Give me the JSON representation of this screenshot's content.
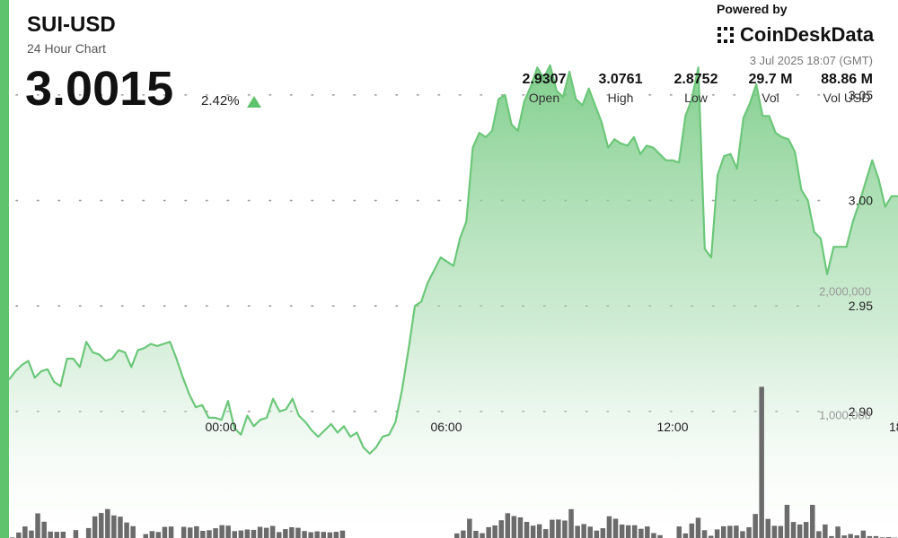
{
  "header": {
    "symbol": "SUI-USD",
    "subtitle": "24 Hour Chart",
    "price": "3.0015",
    "change": "2.42%",
    "powered_by": "Powered by",
    "brand": "CoinDeskData",
    "date": "3 Jul 2025 18:07 (GMT)"
  },
  "stats": [
    {
      "value": "2.9307",
      "label": "Open"
    },
    {
      "value": "3.0761",
      "label": "High"
    },
    {
      "value": "2.8752",
      "label": "Low"
    },
    {
      "value": "29.7 M",
      "label": "Vol"
    },
    {
      "value": "88.86 M",
      "label": "Vol USD"
    }
  ],
  "colors": {
    "accent": "#5fc36d",
    "line": "#6cc77a",
    "volume_bar": "#6b6b6b"
  },
  "chart_data": {
    "type": "area",
    "title": "SUI-USD",
    "x_ticks": [
      "00:00",
      "06:00",
      "12:00",
      "18:"
    ],
    "y_ticks": [
      3.05,
      3.0,
      2.95,
      2.9
    ],
    "y_tick_labels": [
      "3.05",
      "3.00",
      "2.95",
      "2.90"
    ],
    "ylim": [
      2.84,
      3.095
    ],
    "grid": true,
    "price_series": [
      2.915,
      2.919,
      2.922,
      2.924,
      2.916,
      2.919,
      2.92,
      2.914,
      2.912,
      2.925,
      2.925,
      2.921,
      2.933,
      2.928,
      2.927,
      2.924,
      2.925,
      2.929,
      2.928,
      2.921,
      2.929,
      2.93,
      2.932,
      2.931,
      2.932,
      2.933,
      2.925,
      2.916,
      2.908,
      2.902,
      2.903,
      2.897,
      2.897,
      2.896,
      2.905,
      2.892,
      2.889,
      2.898,
      2.893,
      2.896,
      2.897,
      2.906,
      2.9,
      2.901,
      2.906,
      2.898,
      2.895,
      2.891,
      2.888,
      2.891,
      2.894,
      2.89,
      2.893,
      2.888,
      2.89,
      2.883,
      2.88,
      2.883,
      2.888,
      2.889,
      2.895,
      2.91,
      2.929,
      2.95,
      2.952,
      2.961,
      2.967,
      2.973,
      2.971,
      2.969,
      2.982,
      2.99,
      3.025,
      3.032,
      3.03,
      3.033,
      3.048,
      3.05,
      3.036,
      3.033,
      3.047,
      3.054,
      3.063,
      3.058,
      3.064,
      3.052,
      3.049,
      3.061,
      3.048,
      3.045,
      3.053,
      3.045,
      3.037,
      3.025,
      3.029,
      3.027,
      3.026,
      3.03,
      3.022,
      3.026,
      3.025,
      3.022,
      3.019,
      3.019,
      3.018,
      3.04,
      3.048,
      3.063,
      2.977,
      2.973,
      3.012,
      3.021,
      3.022,
      3.015,
      3.039,
      3.046,
      3.055,
      3.04,
      3.04,
      3.032,
      3.03,
      3.029,
      3.023,
      3.005,
      3.0,
      2.985,
      2.982,
      2.965,
      2.978,
      2.978,
      2.978,
      2.99,
      2.999,
      3.009,
      3.019,
      3.01,
      2.997,
      3.002,
      3.002
    ],
    "volume_series": [
      4,
      44,
      94,
      60,
      200,
      132,
      52,
      50,
      51,
      0,
      64,
      0,
      81,
      175,
      203,
      235,
      183,
      173,
      126,
      96,
      0,
      32,
      56,
      49,
      90,
      93,
      0,
      91,
      85,
      95,
      58,
      63,
      79,
      104,
      100,
      56,
      61,
      69,
      66,
      91,
      83,
      98,
      48,
      72,
      87,
      83,
      57,
      47,
      54,
      50,
      46,
      50,
      60,
      0,
      0,
      0,
      0,
      0,
      0,
      0,
      0,
      0,
      0,
      0,
      0,
      0,
      0,
      0,
      0,
      0,
      37,
      61,
      156,
      58,
      39,
      88,
      102,
      144,
      201,
      178,
      167,
      131,
      100,
      111,
      72,
      148,
      150,
      142,
      234,
      99,
      113,
      92,
      60,
      79,
      176,
      156,
      109,
      103,
      104,
      75,
      94,
      40,
      23,
      0,
      0,
      94,
      37,
      118,
      164,
      63,
      18,
      70,
      95,
      99,
      100,
      55,
      87,
      195,
      1225,
      155,
      99,
      97,
      269,
      130,
      110,
      130,
      269,
      55,
      110,
      15,
      93,
      21,
      33,
      22,
      60,
      15,
      15,
      5,
      7,
      3
    ],
    "volume_y_ticks": [
      2000000,
      1000000
    ],
    "volume_y_tick_labels": [
      "2,000,000",
      "1,000,000"
    ],
    "volume_ylim": [
      0,
      2470000
    ]
  }
}
